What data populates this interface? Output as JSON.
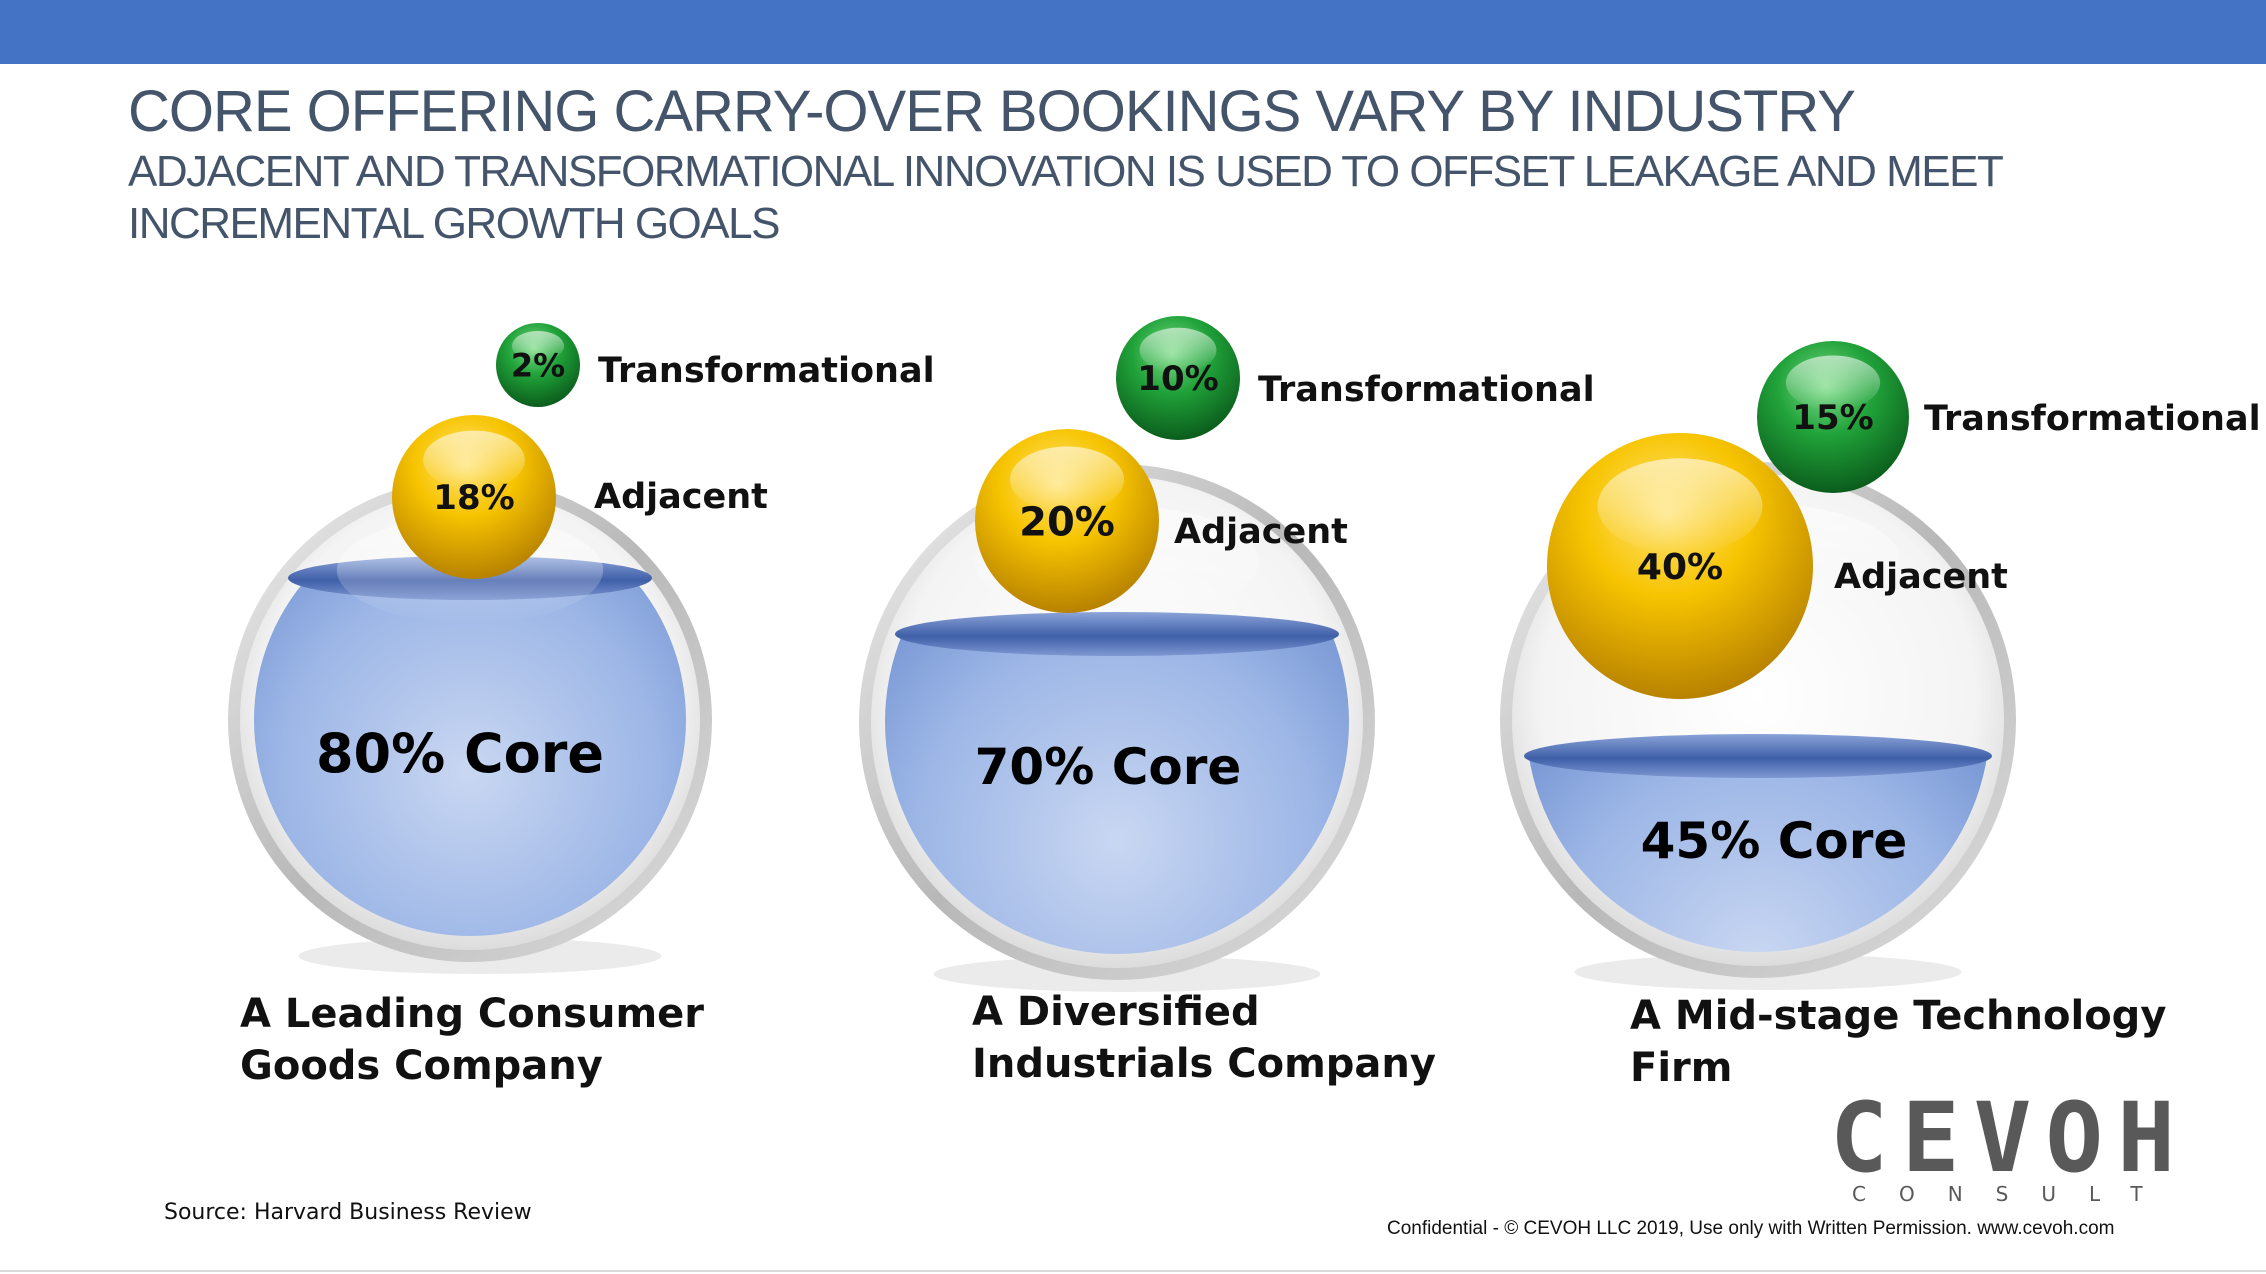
{
  "header": {
    "title": "CORE OFFERING CARRY-OVER BOOKINGS VARY BY INDUSTRY",
    "subtitle": "ADJACENT AND TRANSFORMATIONAL INNOVATION IS USED TO OFFSET LEAKAGE AND MEET INCREMENTAL GROWTH GOALS"
  },
  "colors": {
    "bar": "#4472c4",
    "adjacent": "#f5b800",
    "transformational": "#1e9a36",
    "core": "#8eaae0",
    "text": "#44546a"
  },
  "companies": [
    {
      "name_line1": "A Leading Consumer",
      "name_line2": "Goods Company",
      "core_label": "80% Core",
      "core_value": 80,
      "adjacent_value": "18%",
      "adjacent_label": "Adjacent",
      "transformational_value": "2%",
      "transformational_label": "Transformational"
    },
    {
      "name_line1": "A Diversified",
      "name_line2": "Industrials Company",
      "core_label": "70% Core",
      "core_value": 70,
      "adjacent_value": "20%",
      "adjacent_label": "Adjacent",
      "transformational_value": "10%",
      "transformational_label": "Transformational"
    },
    {
      "name_line1": "A Mid-stage Technology",
      "name_line2": "Firm",
      "core_label": "45% Core",
      "core_value": 45,
      "adjacent_value": "40%",
      "adjacent_label": "Adjacent",
      "transformational_value": "15%",
      "transformational_label": "Transformational"
    }
  ],
  "footer": {
    "source": "Source: Harvard Business Review",
    "confidential": "Confidential - © CEVOH LLC 2019, Use only with Written Permission. www.cevoh.com",
    "logo_main": "CEVOH",
    "logo_sub": "CONSULT"
  }
}
